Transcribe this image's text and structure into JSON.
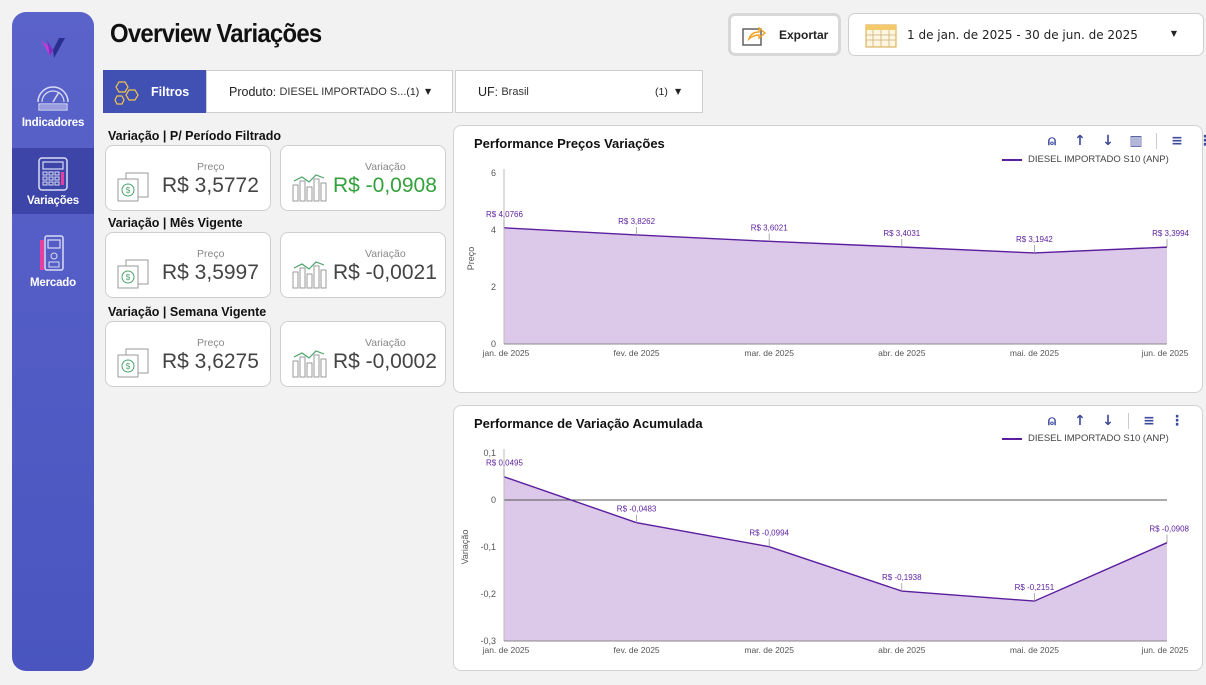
{
  "header": {
    "title": "Overview Variações",
    "export_label": "Exportar",
    "date_range": "1 de jan. de 2025 - 30 de jun. de 2025"
  },
  "sidebar": {
    "items": [
      {
        "label": "Indicadores"
      },
      {
        "label": "Variações"
      },
      {
        "label": "Mercado"
      }
    ]
  },
  "filters": {
    "filtros_label": "Filtros",
    "produto": {
      "key": "Produto",
      "value": "DIESEL IMPORTADO S...",
      "count": "(1)"
    },
    "uf": {
      "key": "UF",
      "value": "Brasil",
      "count": "(1)"
    }
  },
  "kpis": [
    {
      "title": "Variação | P/ Período Filtrado",
      "preco_label": "Preço",
      "preco": "R$ 3,5772",
      "variacao_label": "Variação",
      "variacao": "R$ -0,0908"
    },
    {
      "title": "Variação | Mês Vigente",
      "preco_label": "Preço",
      "preco": "R$ 3,5997",
      "variacao_label": "Variação",
      "variacao": "R$ -0,0021"
    },
    {
      "title": "Variação | Semana Vigente",
      "preco_label": "Preço",
      "preco": "R$ 3,6275",
      "variacao_label": "Variação",
      "variacao": "R$ -0,0002"
    }
  ],
  "colors": {
    "accent": "#4150b3",
    "series": "#5b1e9e",
    "area": "#dcc8e9",
    "positive": "#33a13d"
  },
  "chart_data": [
    {
      "type": "area",
      "title": "Performance Preços Variações",
      "ylabel": "Preço",
      "legend": "DIESEL IMPORTADO S10 (ANP)",
      "legend_position": "top-right",
      "categories": [
        "jan. de 2025",
        "fev. de 2025",
        "mar. de 2025",
        "abr. de 2025",
        "mai. de 2025",
        "jun. de 2025"
      ],
      "values": [
        4.0766,
        3.8262,
        3.6021,
        3.4031,
        3.1942,
        3.3994
      ],
      "data_labels": [
        "R$ 4,0766",
        "R$ 3,8262",
        "R$ 3,6021",
        "R$ 3,4031",
        "R$ 3,1942",
        "R$ 3,3994"
      ],
      "yticks": [
        "0",
        "2",
        "4",
        "6"
      ],
      "ylim": [
        0,
        6
      ]
    },
    {
      "type": "area",
      "title": "Performance de Variação Acumulada",
      "ylabel": "Variação",
      "legend": "DIESEL IMPORTADO S10 (ANP)",
      "legend_position": "top-right",
      "categories": [
        "jan. de 2025",
        "fev. de 2025",
        "mar. de 2025",
        "abr. de 2025",
        "mai. de 2025",
        "jun. de 2025"
      ],
      "values": [
        0.0495,
        -0.0483,
        -0.0994,
        -0.1938,
        -0.2151,
        -0.0908
      ],
      "data_labels": [
        "R$ 0,0495",
        "R$ -0,0483",
        "R$ -0,0994",
        "R$ -0,1938",
        "R$ -0,2151",
        "R$ -0,0908"
      ],
      "yticks": [
        "0,1",
        "0",
        "-0,1",
        "-0,2",
        "-0,3"
      ],
      "ylim": [
        -0.3,
        0.1
      ]
    }
  ]
}
